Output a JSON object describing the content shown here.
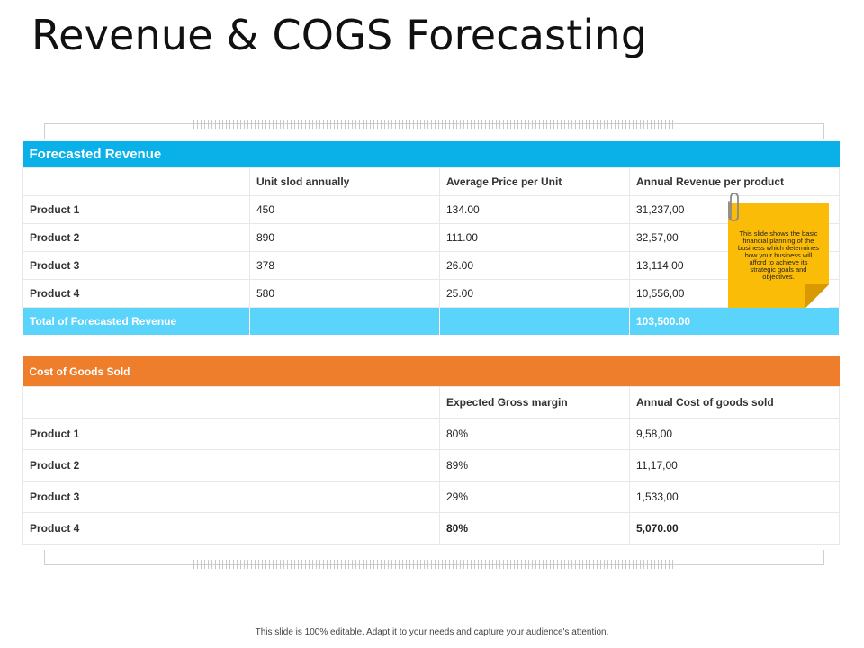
{
  "title": "Revenue & COGS Forecasting",
  "revenue": {
    "header": "Forecasted Revenue",
    "columns": [
      "",
      "Unit slod annually",
      "Average Price per Unit",
      "Annual Revenue  per product"
    ],
    "rows": [
      {
        "product": "Product 1",
        "units": "450",
        "price": "134.00",
        "revenue": "31,237,00"
      },
      {
        "product": "Product 2",
        "units": "890",
        "price": "111.00",
        "revenue": "32,57,00"
      },
      {
        "product": "Product 3",
        "units": "378",
        "price": "26.00",
        "revenue": "13,114,00"
      },
      {
        "product": "Product 4",
        "units": "580",
        "price": "25.00",
        "revenue": "10,556,00"
      }
    ],
    "total": {
      "label": "Total of Forecasted Revenue",
      "value": "103,500.00"
    }
  },
  "cogs": {
    "header": "Cost of Goods Sold",
    "columns": [
      "",
      "Expected  Gross margin",
      "Annual Cost of goods sold"
    ],
    "rows": [
      {
        "product": "Product 1",
        "margin": "80%",
        "cost": "9,58,00"
      },
      {
        "product": "Product 2",
        "margin": "89%",
        "cost": "11,17,00"
      },
      {
        "product": "Product 3",
        "margin": "29%",
        "cost": "1,533,00"
      },
      {
        "product": "Product 4",
        "margin": "80%",
        "cost": "5,070.00"
      }
    ]
  },
  "note": "This slide shows the basic financial planning of the business which determines how your business will afford to achieve its strategic goals and objectives.",
  "footer": "This slide is 100% editable. Adapt it to your needs and capture your audience's attention.",
  "colors": {
    "revenue_header": "#09b1e8",
    "revenue_total": "#5bd4fb",
    "cogs_header": "#ee7e2b",
    "note": "#fbbc08"
  }
}
